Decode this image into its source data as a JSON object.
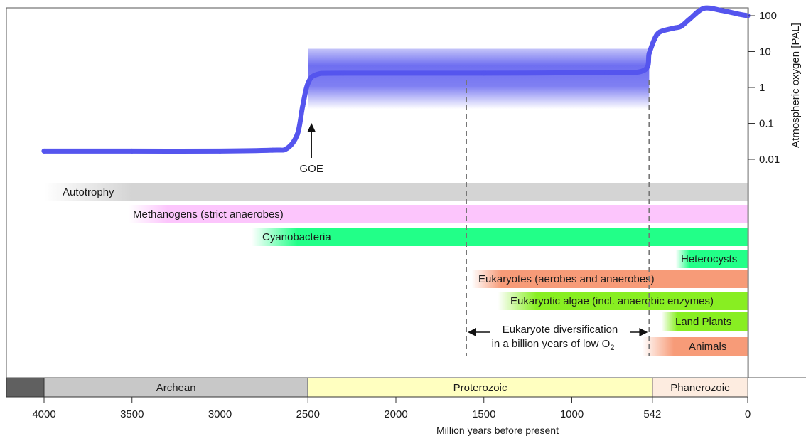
{
  "chart_data": {
    "type": "line",
    "x_axis": {
      "label": "Million years before present",
      "ticks": [
        4000,
        3500,
        3000,
        2500,
        2000,
        1500,
        1000,
        542,
        0
      ],
      "range": [
        4000,
        0
      ],
      "direction": "reversed"
    },
    "y_axis": {
      "label": "Atmospheric oxygen [PAL]",
      "scale": "log",
      "ticks": [
        "100",
        "10",
        "1",
        "0.1",
        "0.01"
      ],
      "tick_values": [
        100,
        10,
        1,
        0.1,
        0.01
      ],
      "side": "right"
    },
    "series": [
      {
        "color": "#5555ee",
        "points": [
          [
            4000,
            0.017
          ],
          [
            3500,
            0.017
          ],
          [
            3000,
            0.017
          ],
          [
            2700,
            0.018
          ],
          [
            2620,
            0.02
          ],
          [
            2560,
            0.05
          ],
          [
            2530,
            0.3
          ],
          [
            2500,
            1.3
          ],
          [
            2450,
            2.3
          ],
          [
            2300,
            2.5
          ],
          [
            1500,
            2.5
          ],
          [
            800,
            2.6
          ],
          [
            590,
            3.0
          ],
          [
            560,
            9
          ],
          [
            530,
            22
          ],
          [
            500,
            35
          ],
          [
            420,
            45
          ],
          [
            380,
            50
          ],
          [
            330,
            80
          ],
          [
            250,
            160
          ],
          [
            150,
            140
          ],
          [
            50,
            110
          ],
          [
            0,
            100
          ]
        ]
      }
    ],
    "uncertainty_band": {
      "x_range": [
        2500,
        560
      ],
      "y_range": [
        0.25,
        12
      ],
      "color": "#5555ee"
    },
    "annotations": {
      "goe": {
        "text": "GOE",
        "x": 2480,
        "y": 0.015
      }
    },
    "lineages": [
      {
        "label": "Autotrophy",
        "start": 4000,
        "end": 0,
        "fade_until": 3500,
        "color": "#d4d4d4"
      },
      {
        "label": "Methanogens (strict anaerobes)",
        "start": 3520,
        "end": 0,
        "fade_until": 3300,
        "color": "#fcc5fc"
      },
      {
        "label": "Cyanobacteria",
        "start": 2820,
        "end": 0,
        "fade_until": 2560,
        "color": "#22ff88"
      },
      {
        "label": "Heterocysts",
        "start": 410,
        "end": 0,
        "fade_until": 330,
        "color": "#22ff88"
      },
      {
        "label": "Eukaryotes (aerobes and anaerobes)",
        "start": 1570,
        "end": 0,
        "fade_until": 1400,
        "color": "#f79b78"
      },
      {
        "label": "Eukaryotic algae (incl. anaerobic enzymes)",
        "start": 1420,
        "end": 0,
        "fade_until": 1200,
        "color": "#88ee22"
      },
      {
        "label": "Land Plants",
        "start": 490,
        "end": 0,
        "fade_until": 400,
        "color": "#88ee22"
      },
      {
        "label": "Animals",
        "start": 600,
        "end": 0,
        "fade_until": 420,
        "color": "#f79b78"
      }
    ],
    "diversification": {
      "line1": "Eukaryote diversification",
      "line2_prefix": "in a billion years of low O",
      "line2_subscript": "2",
      "from": 1600,
      "to": 560
    },
    "eons": [
      {
        "label": "",
        "start": 4200,
        "end": 4000,
        "color": "#606060"
      },
      {
        "label": "Archean",
        "start": 4000,
        "end": 2500,
        "color": "#c8c8c8"
      },
      {
        "label": "Proterozoic",
        "start": 2500,
        "end": 542,
        "color": "#ffffc0"
      },
      {
        "label": "Phanerozoic",
        "start": 542,
        "end": 0,
        "color": "#fdece0"
      }
    ]
  }
}
